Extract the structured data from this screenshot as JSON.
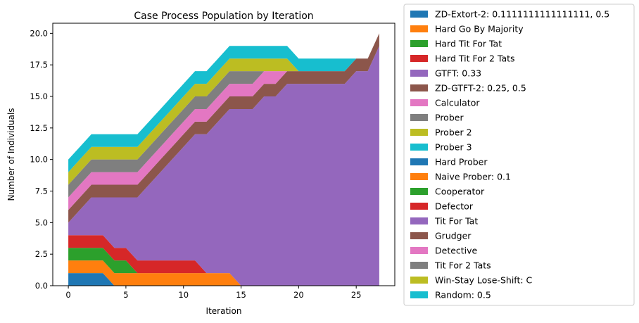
{
  "chart_data": {
    "type": "area",
    "title": "Case Process Population by Iteration",
    "xlabel": "Iteration",
    "ylabel": "Number of Individuals",
    "xlim": [
      -1.35,
      28.35
    ],
    "ylim": [
      0,
      20.8
    ],
    "xticks": [
      "0",
      "5",
      "10",
      "15",
      "20",
      "25"
    ],
    "yticks": [
      "0.0",
      "2.5",
      "5.0",
      "7.5",
      "10.0",
      "12.5",
      "15.0",
      "17.5",
      "20.0"
    ],
    "legend_position": "outside-right",
    "x": [
      0,
      1,
      2,
      3,
      4,
      5,
      6,
      7,
      8,
      9,
      10,
      11,
      12,
      13,
      14,
      15,
      16,
      17,
      18,
      19,
      20,
      21,
      22,
      23,
      24,
      25,
      26,
      27
    ],
    "series": [
      {
        "name": "ZD-Extort-2: 0.1111111111111111, 0.5",
        "color": "#1f77b4",
        "values": [
          1,
          1,
          1,
          1,
          0,
          0,
          0,
          0,
          0,
          0,
          0,
          0,
          0,
          0,
          0,
          0,
          0,
          0,
          0,
          0,
          0,
          0,
          0,
          0,
          0,
          0,
          0,
          0
        ]
      },
      {
        "name": "Hard Go By Majority",
        "color": "#ff7f0e",
        "values": [
          1,
          1,
          1,
          1,
          1,
          1,
          1,
          1,
          1,
          1,
          1,
          1,
          1,
          1,
          1,
          0,
          0,
          0,
          0,
          0,
          0,
          0,
          0,
          0,
          0,
          0,
          0,
          0
        ]
      },
      {
        "name": "Hard Tit For Tat",
        "color": "#2ca02c",
        "values": [
          1,
          1,
          1,
          1,
          1,
          1,
          0,
          0,
          0,
          0,
          0,
          0,
          0,
          0,
          0,
          0,
          0,
          0,
          0,
          0,
          0,
          0,
          0,
          0,
          0,
          0,
          0,
          0
        ]
      },
      {
        "name": "Hard Tit For 2 Tats",
        "color": "#d62728",
        "values": [
          1,
          1,
          1,
          1,
          1,
          1,
          1,
          1,
          1,
          1,
          1,
          1,
          0,
          0,
          0,
          0,
          0,
          0,
          0,
          0,
          0,
          0,
          0,
          0,
          0,
          0,
          0,
          0
        ]
      },
      {
        "name": "GTFT: 0.33",
        "color": "#9467bd",
        "values": [
          0,
          0,
          0,
          0,
          0,
          0,
          0,
          0,
          0,
          0,
          0,
          0,
          0,
          0,
          0,
          0,
          0,
          0,
          0,
          0,
          0,
          0,
          0,
          0,
          0,
          0,
          0,
          0
        ]
      },
      {
        "name": "ZD-GTFT-2: 0.25, 0.5",
        "color": "#8c564b",
        "values": [
          0,
          0,
          0,
          0,
          0,
          0,
          0,
          0,
          0,
          0,
          0,
          0,
          0,
          0,
          0,
          0,
          0,
          0,
          0,
          0,
          0,
          0,
          0,
          0,
          0,
          0,
          0,
          0
        ]
      },
      {
        "name": "Calculator",
        "color": "#e377c2",
        "values": [
          0,
          0,
          0,
          0,
          0,
          0,
          0,
          0,
          0,
          0,
          0,
          0,
          0,
          0,
          0,
          0,
          0,
          0,
          0,
          0,
          0,
          0,
          0,
          0,
          0,
          0,
          0,
          0
        ]
      },
      {
        "name": "Prober",
        "color": "#7f7f7f",
        "values": [
          0,
          0,
          0,
          0,
          0,
          0,
          0,
          0,
          0,
          0,
          0,
          0,
          0,
          0,
          0,
          0,
          0,
          0,
          0,
          0,
          0,
          0,
          0,
          0,
          0,
          0,
          0,
          0
        ]
      },
      {
        "name": "Prober 2",
        "color": "#bcbd22",
        "values": [
          0,
          0,
          0,
          0,
          0,
          0,
          0,
          0,
          0,
          0,
          0,
          0,
          0,
          0,
          0,
          0,
          0,
          0,
          0,
          0,
          0,
          0,
          0,
          0,
          0,
          0,
          0,
          0
        ]
      },
      {
        "name": "Prober 3",
        "color": "#17becf",
        "values": [
          0,
          0,
          0,
          0,
          0,
          0,
          0,
          0,
          0,
          0,
          0,
          0,
          0,
          0,
          0,
          0,
          0,
          0,
          0,
          0,
          0,
          0,
          0,
          0,
          0,
          0,
          0,
          0
        ]
      },
      {
        "name": "Hard Prober",
        "color": "#1f77b4",
        "values": [
          0,
          0,
          0,
          0,
          0,
          0,
          0,
          0,
          0,
          0,
          0,
          0,
          0,
          0,
          0,
          0,
          0,
          0,
          0,
          0,
          0,
          0,
          0,
          0,
          0,
          0,
          0,
          0
        ]
      },
      {
        "name": "Naive Prober: 0.1",
        "color": "#ff7f0e",
        "values": [
          0,
          0,
          0,
          0,
          0,
          0,
          0,
          0,
          0,
          0,
          0,
          0,
          0,
          0,
          0,
          0,
          0,
          0,
          0,
          0,
          0,
          0,
          0,
          0,
          0,
          0,
          0,
          0
        ]
      },
      {
        "name": "Cooperator",
        "color": "#2ca02c",
        "values": [
          0,
          0,
          0,
          0,
          0,
          0,
          0,
          0,
          0,
          0,
          0,
          0,
          0,
          0,
          0,
          0,
          0,
          0,
          0,
          0,
          0,
          0,
          0,
          0,
          0,
          0,
          0,
          0
        ]
      },
      {
        "name": "Defector",
        "color": "#d62728",
        "values": [
          0,
          0,
          0,
          0,
          0,
          0,
          0,
          0,
          0,
          0,
          0,
          0,
          0,
          0,
          0,
          0,
          0,
          0,
          0,
          0,
          0,
          0,
          0,
          0,
          0,
          0,
          0,
          0
        ]
      },
      {
        "name": "Tit For Tat",
        "color": "#9467bd",
        "values": [
          1,
          2,
          3,
          3,
          4,
          4,
          5,
          6,
          7,
          8,
          9,
          10,
          11,
          12,
          13,
          14,
          14,
          15,
          15,
          16,
          16,
          16,
          16,
          16,
          16,
          17,
          17,
          19
        ]
      },
      {
        "name": "Grudger",
        "color": "#8c564b",
        "values": [
          1,
          1,
          1,
          1,
          1,
          1,
          1,
          1,
          1,
          1,
          1,
          1,
          1,
          1,
          1,
          1,
          1,
          1,
          1,
          1,
          1,
          1,
          1,
          1,
          1,
          1,
          1,
          1
        ]
      },
      {
        "name": "Detective",
        "color": "#e377c2",
        "values": [
          1,
          1,
          1,
          1,
          1,
          1,
          1,
          1,
          1,
          1,
          1,
          1,
          1,
          1,
          1,
          1,
          1,
          1,
          1,
          0,
          0,
          0,
          0,
          0,
          0,
          0,
          0,
          0
        ]
      },
      {
        "name": "Tit For 2 Tats",
        "color": "#7f7f7f",
        "values": [
          1,
          1,
          1,
          1,
          1,
          1,
          1,
          1,
          1,
          1,
          1,
          1,
          1,
          1,
          1,
          1,
          1,
          0,
          0,
          0,
          0,
          0,
          0,
          0,
          0,
          0,
          0,
          0
        ]
      },
      {
        "name": "Win-Stay Lose-Shift: C",
        "color": "#bcbd22",
        "values": [
          1,
          1,
          1,
          1,
          1,
          1,
          1,
          1,
          1,
          1,
          1,
          1,
          1,
          1,
          1,
          1,
          1,
          1,
          1,
          1,
          0,
          0,
          0,
          0,
          0,
          0,
          0,
          0
        ]
      },
      {
        "name": "Random: 0.5",
        "color": "#17becf",
        "values": [
          1,
          1,
          1,
          1,
          1,
          1,
          1,
          1,
          1,
          1,
          1,
          1,
          1,
          1,
          1,
          1,
          1,
          1,
          1,
          1,
          1,
          1,
          1,
          1,
          1,
          0,
          0,
          0
        ]
      }
    ]
  }
}
